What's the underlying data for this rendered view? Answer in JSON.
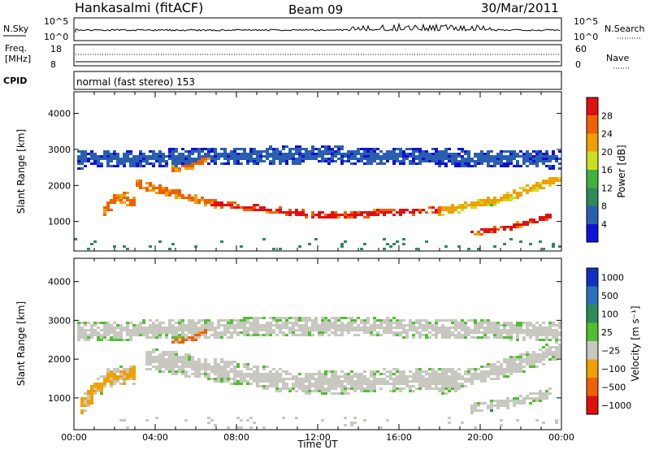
{
  "header": {
    "station": "Hankasalmi (fitACF)",
    "beam": "Beam 09",
    "date": "30/Mar/2011"
  },
  "nsky_panel": {
    "left_label": "N.Sky",
    "right_label": "N.Search",
    "ytick_top": "10^5",
    "ytick_bottom": "10^0",
    "rtick_top": "10^5",
    "rtick_bottom": "10^0"
  },
  "freq_panel": {
    "left_label_line1": "Freq.",
    "left_label_line2": "[MHz]",
    "right_label": "Nave",
    "ytick_top": "18",
    "ytick_bottom": "8",
    "rtick_top": "60",
    "rtick_bottom": "0"
  },
  "cpid_panel": {
    "left_label": "CPID",
    "mode_text": "normal (fast stereo) 153"
  },
  "colors": {
    "power": [
      "#1010d8",
      "#2a5fb0",
      "#2e8b57",
      "#40b040",
      "#c8e020",
      "#f0a000",
      "#f06000",
      "#e01010"
    ],
    "velocity": [
      "#1030c0",
      "#2870c0",
      "#2e8b57",
      "#50c030",
      "#c8c8c0",
      "#f0a000",
      "#f06000",
      "#e01010"
    ],
    "ground_scatter": "#bebebe"
  },
  "chart_data": [
    {
      "type": "heatmap",
      "name": "power-panel",
      "xlabel": "",
      "ylabel": "Slant Range [km]",
      "ylim": [
        180,
        4600
      ],
      "xlim": [
        0,
        24
      ],
      "yticks": [
        "1000",
        "2000",
        "3000",
        "4000"
      ],
      "ytick_values": [
        1000,
        2000,
        3000,
        4000
      ],
      "colorbar_label": "Power [dB]",
      "colorbar_ticks": [
        "4",
        "8",
        "12",
        "16",
        "20",
        "24",
        "28"
      ],
      "bands": [
        {
          "t": [
            6.8,
            18.0
          ],
          "center_start": 1500,
          "center_mid": 1130,
          "center_end": 1300,
          "width": 200,
          "level": 7
        },
        {
          "t": [
            3.0,
            7.0
          ],
          "center_start": 2050,
          "center_mid": 1750,
          "center_end": 1450,
          "width": 260,
          "level": 6
        },
        {
          "t": [
            18.0,
            24.0
          ],
          "center_start": 1250,
          "center_mid": 1600,
          "center_end": 2200,
          "width": 260,
          "level": 5
        },
        {
          "t": [
            1.5,
            3.0
          ],
          "center_start": 1300,
          "center_mid": 1700,
          "center_end": 1500,
          "width": 380,
          "level": 6
        },
        {
          "t": [
            19.5,
            23.5
          ],
          "center_start": 650,
          "center_mid": 830,
          "center_end": 1150,
          "width": 180,
          "level": 7
        },
        {
          "t": [
            0.1,
            24.0
          ],
          "center_start": 2700,
          "center_mid": 2850,
          "center_end": 2700,
          "width": 500,
          "level": 1
        },
        {
          "t": [
            4.8,
            6.7
          ],
          "center_start": 2450,
          "center_mid": 2500,
          "center_end": 2750,
          "width": 170,
          "level": 6
        }
      ]
    },
    {
      "type": "heatmap",
      "name": "velocity-panel",
      "xlabel": "Time UT",
      "ylabel": "Slant Range [km]",
      "ylim": [
        180,
        4600
      ],
      "xlim": [
        0,
        24
      ],
      "yticks": [
        "1000",
        "2000",
        "3000",
        "4000"
      ],
      "ytick_values": [
        1000,
        2000,
        3000,
        4000
      ],
      "xticks": [
        "00:00",
        "04:00",
        "08:00",
        "12:00",
        "16:00",
        "20:00",
        "00:00"
      ],
      "xtick_values": [
        0,
        4,
        8,
        12,
        16,
        20,
        24
      ],
      "colorbar_label": "Velocity [m s⁻¹]",
      "colorbar_ticks": [
        "1000",
        "500",
        "100",
        "25",
        "−25",
        "−100",
        "−500",
        "−1000"
      ],
      "bands": [
        {
          "t": [
            3.5,
            19.0
          ],
          "center_start": 2000,
          "center_mid": 1350,
          "center_end": 1500,
          "width": 600,
          "level": 4
        },
        {
          "t": [
            18.0,
            24.0
          ],
          "center_start": 1300,
          "center_mid": 1700,
          "center_end": 2250,
          "width": 500,
          "level": 4
        },
        {
          "t": [
            0.1,
            24.0
          ],
          "center_start": 2700,
          "center_mid": 2850,
          "center_end": 2700,
          "width": 500,
          "level": 4
        },
        {
          "t": [
            19.5,
            23.5
          ],
          "center_start": 700,
          "center_mid": 850,
          "center_end": 1100,
          "width": 260,
          "level": 4
        },
        {
          "t": [
            4.8,
            6.7
          ],
          "center_start": 2450,
          "center_mid": 2500,
          "center_end": 2750,
          "width": 170,
          "level": 6
        },
        {
          "t": [
            0.3,
            3.0
          ],
          "center_start": 750,
          "center_mid": 1500,
          "center_end": 1600,
          "width": 500,
          "level": 5
        }
      ]
    }
  ]
}
